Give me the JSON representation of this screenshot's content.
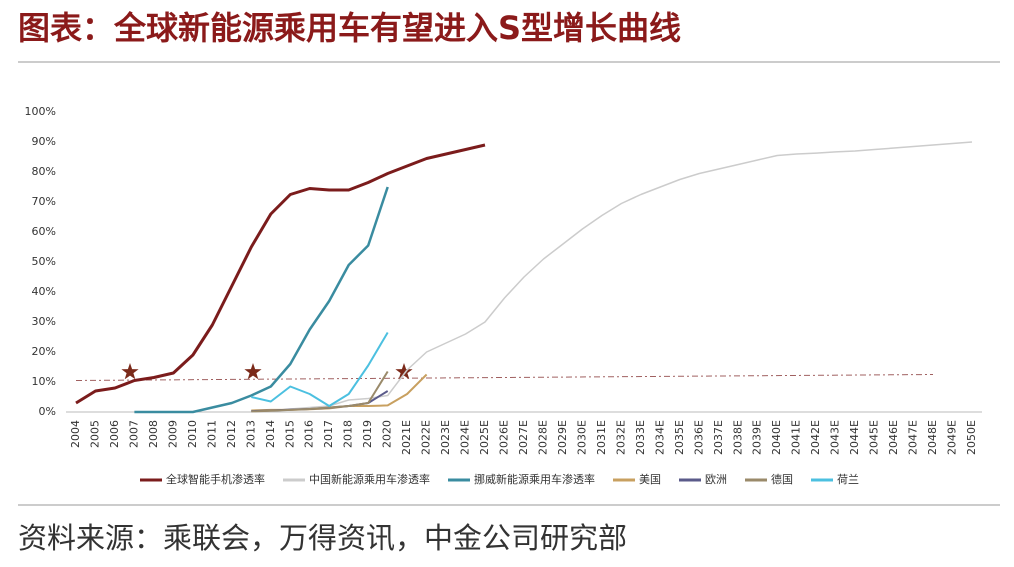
{
  "chart_data": {
    "type": "line",
    "title": "图表：全球新能源乘用车有望进入S型增长曲线",
    "source": "资料来源：乘联会，万得资讯，中金公司研究部",
    "categories": [
      "2004",
      "2005",
      "2006",
      "2007",
      "2008",
      "2009",
      "2010",
      "2011",
      "2012",
      "2013",
      "2014",
      "2015",
      "2016",
      "2017",
      "2018",
      "2019",
      "2020",
      "2021E",
      "2022E",
      "2023E",
      "2024E",
      "2025E",
      "2026E",
      "2027E",
      "2028E",
      "2029E",
      "2030E",
      "2031E",
      "2032E",
      "2033E",
      "2034E",
      "2035E",
      "2036E",
      "2037E",
      "2038E",
      "2039E",
      "2040E",
      "2041E",
      "2042E",
      "2043E",
      "2044E",
      "2045E",
      "2046E",
      "2047E",
      "2048E",
      "2049E",
      "2050E"
    ],
    "ylim": [
      0,
      100
    ],
    "yticks": [
      {
        "value": 0,
        "label": "0%"
      },
      {
        "value": 10,
        "label": "10%"
      },
      {
        "value": 20,
        "label": "20%"
      },
      {
        "value": 30,
        "label": "30%"
      },
      {
        "value": 40,
        "label": "40%"
      },
      {
        "value": 50,
        "label": "50%"
      },
      {
        "value": 60,
        "label": "60%"
      },
      {
        "value": 70,
        "label": "70%"
      },
      {
        "value": 80,
        "label": "80%"
      },
      {
        "value": 90,
        "label": "90%"
      },
      {
        "value": 100,
        "label": "100%"
      }
    ],
    "grid": false,
    "legend": "bottom",
    "series": [
      {
        "name": "全球智能手机渗透率",
        "color": "#7b1c1c",
        "width": 3,
        "values": [
          3,
          7,
          8,
          10.5,
          11.5,
          13,
          19,
          29,
          42,
          55,
          66,
          72.5,
          74.5,
          74,
          74,
          76.5,
          79.5,
          82,
          84.5,
          86,
          87.5,
          89,
          null,
          null,
          null,
          null,
          null,
          null,
          null,
          null,
          null,
          null,
          null,
          null,
          null,
          null,
          null,
          null,
          null,
          null,
          null,
          null,
          null,
          null,
          null,
          null,
          null
        ]
      },
      {
        "name": "中国新能源乘用车渗透率",
        "color": "#cccccc",
        "width": 1.5,
        "values": [
          null,
          null,
          null,
          null,
          null,
          null,
          null,
          null,
          null,
          0.3,
          0.3,
          1,
          1.5,
          2,
          4,
          4.5,
          5.5,
          14,
          20,
          23,
          26,
          30,
          38,
          45,
          51,
          56,
          61,
          65.5,
          69.5,
          72.5,
          75,
          77.5,
          79.5,
          81,
          82.5,
          84,
          85.5,
          86,
          86.3,
          86.7,
          87,
          87.5,
          88,
          88.5,
          89,
          89.5,
          90
        ]
      },
      {
        "name": "挪威新能源乘用车渗透率",
        "color": "#3a8ca0",
        "width": 2.5,
        "values": [
          null,
          null,
          null,
          0,
          0,
          0,
          0,
          1.5,
          3,
          5.5,
          8.5,
          16,
          27.5,
          37,
          49,
          55.5,
          75,
          null,
          null,
          null,
          null,
          null,
          null,
          null,
          null,
          null,
          null,
          null,
          null,
          null,
          null,
          null,
          null,
          null,
          null,
          null,
          null,
          null,
          null,
          null,
          null,
          null,
          null,
          null,
          null,
          null,
          null
        ]
      },
      {
        "name": "美国",
        "color": "#c8a060",
        "width": 2,
        "values": [
          null,
          null,
          null,
          null,
          null,
          null,
          null,
          null,
          null,
          0.5,
          0.7,
          0.7,
          0.9,
          1.2,
          2,
          2,
          2.2,
          6,
          12.5,
          null,
          null,
          null,
          null,
          null,
          null,
          null,
          null,
          null,
          null,
          null,
          null,
          null,
          null,
          null,
          null,
          null,
          null,
          null,
          null,
          null,
          null,
          null,
          null,
          null,
          null,
          null,
          null
        ]
      },
      {
        "name": "欧洲",
        "color": "#5a5a8a",
        "width": 2,
        "values": [
          null,
          null,
          null,
          null,
          null,
          null,
          null,
          null,
          null,
          0.3,
          0.5,
          0.8,
          1,
          1.4,
          2,
          3,
          7,
          null,
          null,
          null,
          null,
          null,
          null,
          null,
          null,
          null,
          null,
          null,
          null,
          null,
          null,
          null,
          null,
          null,
          null,
          null,
          null,
          null,
          null,
          null,
          null,
          null,
          null,
          null,
          null,
          null,
          null
        ]
      },
      {
        "name": "德国",
        "color": "#9a8a6a",
        "width": 2,
        "values": [
          null,
          null,
          null,
          null,
          null,
          null,
          null,
          null,
          null,
          0.2,
          0.4,
          0.7,
          1,
          1.5,
          2,
          3,
          13.5,
          null,
          null,
          null,
          null,
          null,
          null,
          null,
          null,
          null,
          null,
          null,
          null,
          null,
          null,
          null,
          null,
          null,
          null,
          null,
          null,
          null,
          null,
          null,
          null,
          null,
          null,
          null,
          null,
          null,
          null
        ]
      },
      {
        "name": "荷兰",
        "color": "#4cc0e0",
        "width": 2,
        "values": [
          null,
          null,
          null,
          null,
          null,
          null,
          null,
          null,
          null,
          5,
          3.5,
          8.5,
          6,
          2,
          6,
          15.5,
          26.5,
          null,
          null,
          null,
          null,
          null,
          null,
          null,
          null,
          null,
          null,
          null,
          null,
          null,
          null,
          null,
          null,
          null,
          null,
          null,
          null,
          null,
          null,
          null,
          null,
          null,
          null,
          null,
          null,
          null,
          null
        ]
      }
    ]
  }
}
